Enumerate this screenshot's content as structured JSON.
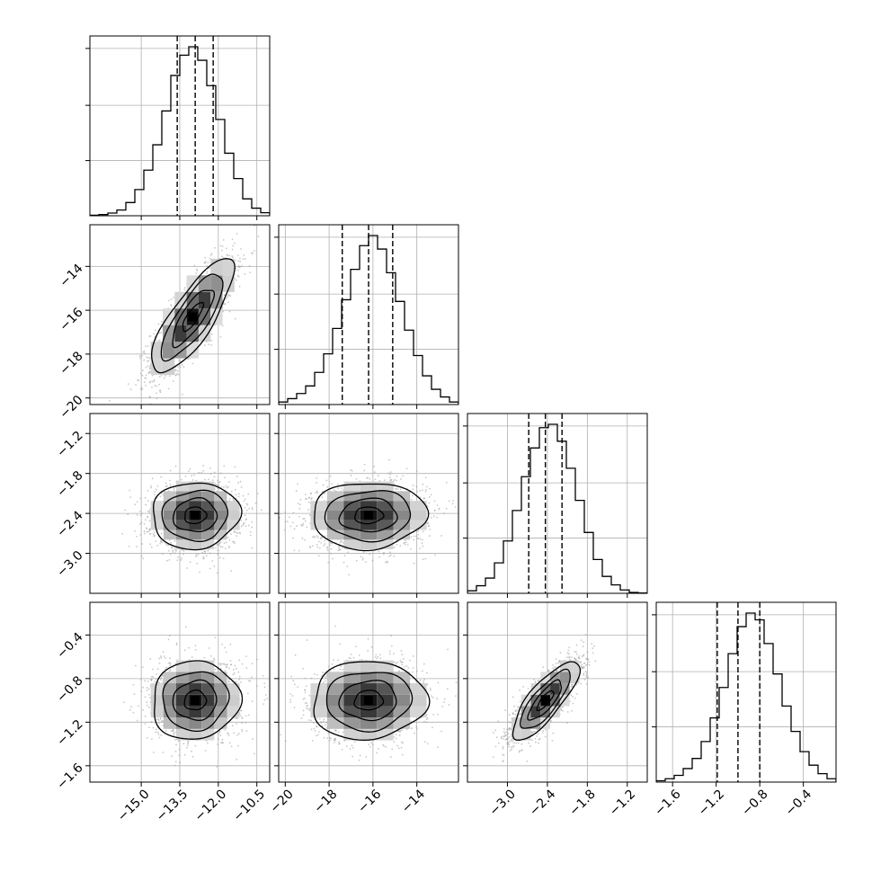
{
  "chart_data": {
    "type": "corner",
    "title": "",
    "colors": {
      "line": "#000000",
      "grid": "#b0b0b0",
      "scatter": "#9a9a9a",
      "background": "#ffffff"
    },
    "grid": true,
    "variables": [
      {
        "label": "",
        "range": [
          -17.0,
          -10.0
        ],
        "ticks": [
          -15.0,
          -13.5,
          -12.0,
          -10.5
        ],
        "tick_labels": [
          "−15.0",
          "−13.5",
          "−12.0",
          "−10.5"
        ],
        "quantiles": [
          -13.6,
          -12.9,
          -12.2
        ]
      },
      {
        "label": "",
        "range": [
          -20.3,
          -12.1
        ],
        "ticks": [
          -20,
          -18,
          -16,
          -14
        ],
        "tick_labels": [
          "−20",
          "−18",
          "−16",
          "−14"
        ],
        "quantiles": [
          -17.4,
          -16.2,
          -15.1
        ]
      },
      {
        "label": "",
        "range": [
          -3.6,
          -0.9
        ],
        "ticks": [
          -3.0,
          -2.4,
          -1.8,
          -1.2
        ],
        "tick_labels": [
          "−3.0",
          "−2.4",
          "−1.8",
          "−1.2"
        ],
        "quantiles": [
          -2.68,
          -2.43,
          -2.18
        ]
      },
      {
        "label": "",
        "range": [
          -1.75,
          -0.1
        ],
        "ticks": [
          -1.6,
          -1.2,
          -0.8,
          -0.4
        ],
        "tick_labels": [
          "−1.6",
          "−1.2",
          "−0.8",
          "−0.4"
        ],
        "quantiles": [
          -1.19,
          -1.0,
          -0.8
        ]
      }
    ],
    "histograms": [
      {
        "variable": 0,
        "bin_edges_range": [
          -17.0,
          -10.0
        ],
        "counts": [
          0.3,
          0.7,
          1.6,
          3.4,
          7.8,
          15.5,
          27.0,
          42.0,
          62.0,
          83.0,
          95.0,
          100.0,
          92.0,
          77.0,
          57.0,
          37.0,
          22.0,
          10.0,
          4.5,
          1.8
        ]
      },
      {
        "variable": 1,
        "bin_edges_range": [
          -20.3,
          -12.1
        ],
        "counts": [
          1.5,
          3.5,
          6.5,
          11.0,
          19.0,
          30.0,
          45.0,
          62.0,
          80.0,
          94.0,
          100.0,
          92.0,
          78.0,
          61.0,
          44.0,
          29.0,
          17.0,
          9.0,
          4.5,
          1.5
        ]
      },
      {
        "variable": 2,
        "bin_edges_range": [
          -3.6,
          -0.9
        ],
        "counts": [
          1.5,
          4.5,
          9.0,
          18.0,
          31.0,
          49.0,
          69.0,
          86.0,
          98.0,
          100.0,
          90.0,
          74.0,
          55.0,
          36.0,
          20.0,
          10.0,
          5.0,
          2.0,
          0.5,
          0.2
        ]
      },
      {
        "variable": 3,
        "bin_edges_range": [
          -1.75,
          -0.1
        ],
        "counts": [
          0.8,
          2.0,
          4.0,
          8.0,
          14.0,
          24.0,
          38.0,
          56.0,
          76.0,
          92.0,
          100.0,
          96.0,
          82.0,
          64.0,
          45.0,
          30.0,
          18.0,
          10.0,
          5.0,
          2.0
        ]
      }
    ],
    "pairs": [
      {
        "x": 0,
        "y": 1,
        "center": [
          -13.0,
          -16.3
        ],
        "std": [
          0.8,
          1.3
        ],
        "correlation": 0.8
      },
      {
        "x": 0,
        "y": 2,
        "center": [
          -12.9,
          -2.43
        ],
        "std": [
          0.85,
          0.25
        ],
        "correlation": 0.05
      },
      {
        "x": 1,
        "y": 2,
        "center": [
          -16.2,
          -2.43
        ],
        "std": [
          1.3,
          0.25
        ],
        "correlation": 0.05
      },
      {
        "x": 0,
        "y": 3,
        "center": [
          -12.9,
          -1.0
        ],
        "std": [
          0.85,
          0.18
        ],
        "correlation": 0.05
      },
      {
        "x": 1,
        "y": 3,
        "center": [
          -16.2,
          -1.0
        ],
        "std": [
          1.3,
          0.18
        ],
        "correlation": 0.05
      },
      {
        "x": 2,
        "y": 3,
        "center": [
          -2.43,
          -1.0
        ],
        "std": [
          0.25,
          0.18
        ],
        "correlation": 0.8
      }
    ],
    "contour_levels_sigma": [
      0.5,
      1.0,
      1.5,
      2.0
    ]
  }
}
